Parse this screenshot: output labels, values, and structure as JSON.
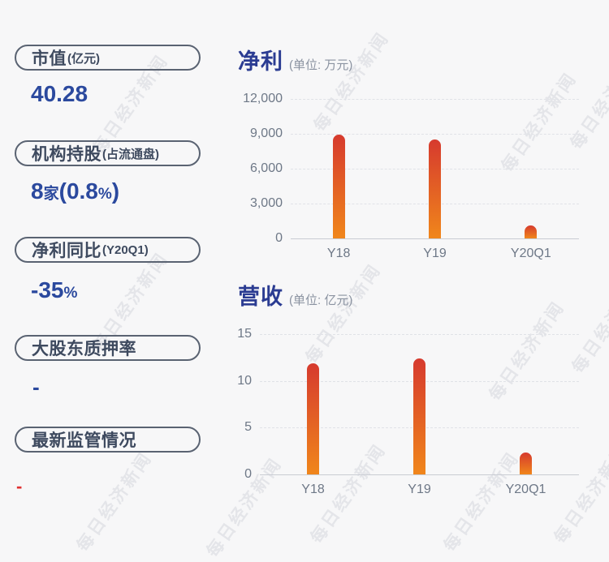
{
  "watermark": {
    "text": "每日经济新闻"
  },
  "colors": {
    "background": "#f7f7f8",
    "value_blue": "#2b499e",
    "title_navy": "#2b3c92",
    "label_navy": "#3e4a5f",
    "pill_border": "#5a6372",
    "axis_text": "#6e7887",
    "bar_top": "#d63a2e",
    "bar_bottom": "#f0861b",
    "negative_red": "#e03030"
  },
  "sidebar": {
    "cards": [
      {
        "label": "市值",
        "label_suffix": "(亿元)",
        "segments": [
          "40.28"
        ]
      },
      {
        "label": "机构持股",
        "label_suffix": "(占流通盘)",
        "segments": [
          "8",
          "家",
          "(0.8",
          "%",
          ")"
        ]
      },
      {
        "label": "净利同比",
        "label_suffix": "(Y20Q1)",
        "segments": [
          "-35",
          "%"
        ]
      },
      {
        "label": "大股东质押率",
        "label_suffix": "",
        "segments": [
          "-"
        ]
      },
      {
        "label": "最新监管情况",
        "label_suffix": "",
        "segments": [
          "-"
        ],
        "value_color": "#e03030"
      }
    ]
  },
  "chart_data": [
    {
      "type": "bar",
      "title": "净利",
      "unit": "(单位: 万元)",
      "categories": [
        "Y18",
        "Y19",
        "Y20Q1"
      ],
      "values": [
        8900,
        8500,
        1150
      ],
      "ylim": [
        0,
        12000
      ],
      "yticks": [
        0,
        3000,
        6000,
        9000,
        12000
      ],
      "ytick_labels": [
        "0",
        "3,000",
        "6,000",
        "9,000",
        "12,000"
      ],
      "grid": "dashed-horizontal",
      "legend": "none",
      "bar_gradient": [
        "#f0861b",
        "#d63a2e"
      ]
    },
    {
      "type": "bar",
      "title": "营收",
      "unit": "(单位: 亿元)",
      "categories": [
        "Y18",
        "Y19",
        "Y20Q1"
      ],
      "values": [
        11.9,
        12.4,
        2.3
      ],
      "ylim": [
        0,
        15
      ],
      "yticks": [
        0,
        5,
        10,
        15
      ],
      "ytick_labels": [
        "0",
        "5",
        "10",
        "15"
      ],
      "grid": "dashed-horizontal",
      "legend": "none",
      "bar_gradient": [
        "#f0861b",
        "#d63a2e"
      ]
    }
  ]
}
